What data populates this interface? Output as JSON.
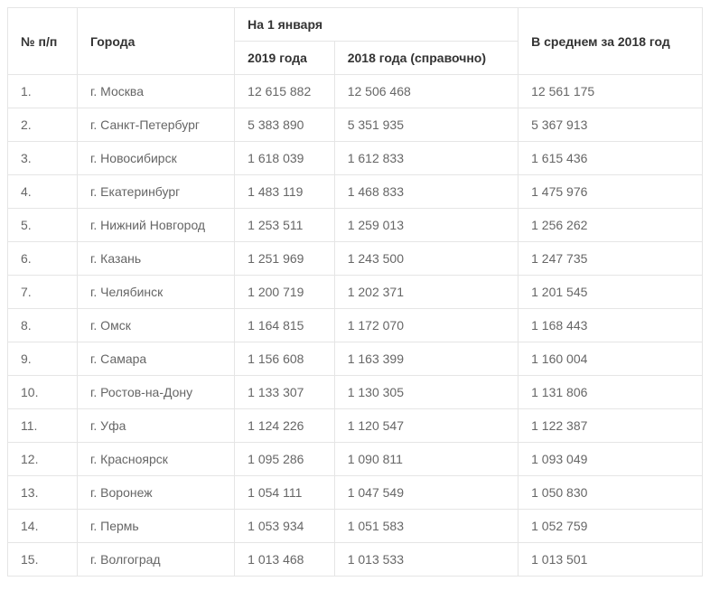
{
  "table": {
    "type": "table",
    "background_color": "#ffffff",
    "border_color": "#e5e5e5",
    "header_text_color": "#333333",
    "body_text_color": "#666666",
    "font_family": "Segoe UI, Helvetica Neue, Arial, sans-serif",
    "font_size_pt": 10.5,
    "header": {
      "col_num": "№ п/п",
      "col_city": "Города",
      "col_jan1": "На 1 января",
      "col_2019": "2019 года",
      "col_2018_ref": "2018 года (справочно)",
      "col_avg_2018": "В среднем за 2018 год"
    },
    "columns": [
      "num",
      "city",
      "y2019",
      "y2018",
      "avg2018"
    ],
    "column_alignment": [
      "left",
      "left",
      "left",
      "left",
      "left"
    ],
    "rows": [
      {
        "num": "1.",
        "city": "г. Москва",
        "y2019": "12 615 882",
        "y2018": "12 506 468",
        "avg2018": "12 561 175"
      },
      {
        "num": "2.",
        "city": "г. Санкт-Петербург",
        "y2019": "5 383 890",
        "y2018": "5 351 935",
        "avg2018": "5 367 913"
      },
      {
        "num": "3.",
        "city": "г. Новосибирск",
        "y2019": "1 618 039",
        "y2018": "1 612 833",
        "avg2018": "1 615 436"
      },
      {
        "num": "4.",
        "city": "г. Екатеринбург",
        "y2019": "1 483 119",
        "y2018": "1 468 833",
        "avg2018": "1 475 976"
      },
      {
        "num": "5.",
        "city": "г. Нижний Новгород",
        "y2019": "1 253 511",
        "y2018": "1 259 013",
        "avg2018": "1 256 262"
      },
      {
        "num": "6.",
        "city": "г. Казань",
        "y2019": "1 251 969",
        "y2018": "1 243 500",
        "avg2018": "1 247 735"
      },
      {
        "num": "7.",
        "city": "г. Челябинск",
        "y2019": "1 200 719",
        "y2018": "1 202 371",
        "avg2018": "1 201 545"
      },
      {
        "num": "8.",
        "city": "г. Омск",
        "y2019": "1 164 815",
        "y2018": "1 172 070",
        "avg2018": "1 168 443"
      },
      {
        "num": "9.",
        "city": "г. Самара",
        "y2019": "1 156 608",
        "y2018": "1 163 399",
        "avg2018": "1 160 004"
      },
      {
        "num": "10.",
        "city": "г. Ростов-на-Дону",
        "y2019": "1 133 307",
        "y2018": "1 130 305",
        "avg2018": "1 131 806"
      },
      {
        "num": "11.",
        "city": "г. Уфа",
        "y2019": "1 124 226",
        "y2018": "1 120 547",
        "avg2018": "1 122 387"
      },
      {
        "num": "12.",
        "city": "г. Красноярск",
        "y2019": "1 095 286",
        "y2018": "1 090 811",
        "avg2018": "1 093 049"
      },
      {
        "num": "13.",
        "city": "г. Воронеж",
        "y2019": "1 054 111",
        "y2018": "1 047 549",
        "avg2018": "1 050 830"
      },
      {
        "num": "14.",
        "city": "г. Пермь",
        "y2019": "1 053 934",
        "y2018": "1 051 583",
        "avg2018": "1 052 759"
      },
      {
        "num": "15.",
        "city": "г. Волгоград",
        "y2019": "1 013 468",
        "y2018": "1 013 533",
        "avg2018": "1 013 501"
      }
    ]
  }
}
